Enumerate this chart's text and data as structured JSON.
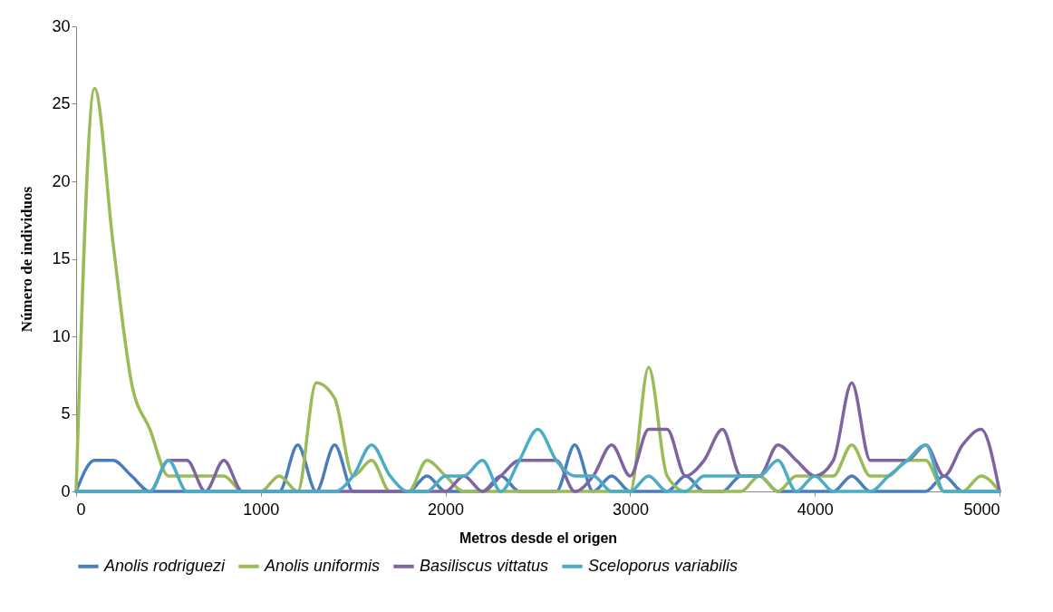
{
  "chart_data": {
    "type": "line",
    "xlabel": "Metros desde el origen",
    "ylabel": "Número de individuos",
    "x": [
      0,
      100,
      200,
      300,
      400,
      500,
      600,
      700,
      800,
      900,
      1000,
      1100,
      1200,
      1300,
      1400,
      1500,
      1600,
      1700,
      1800,
      1900,
      2000,
      2100,
      2200,
      2300,
      2400,
      2500,
      2600,
      2700,
      2800,
      2900,
      3000,
      3100,
      3200,
      3300,
      3400,
      3500,
      3600,
      3700,
      3800,
      3900,
      4000,
      4100,
      4200,
      4300,
      4400,
      4500,
      4600,
      4700,
      4800,
      4900,
      5000
    ],
    "series": [
      {
        "name": "Anolis rodriguezi",
        "color": "#4a7ebb",
        "values": [
          0,
          2,
          2,
          1,
          0,
          0,
          0,
          0,
          0,
          0,
          0,
          0,
          3,
          0,
          3,
          0,
          0,
          0,
          0,
          1,
          0,
          0,
          0,
          1,
          0,
          0,
          0,
          3,
          0,
          1,
          0,
          0,
          0,
          1,
          0,
          0,
          1,
          1,
          0,
          0,
          0,
          0,
          1,
          0,
          0,
          0,
          0,
          1,
          0,
          0,
          0
        ]
      },
      {
        "name": "Anolis uniformis",
        "color": "#9bbb59",
        "values": [
          0,
          26,
          16,
          7,
          4,
          1,
          1,
          1,
          1,
          0,
          0,
          1,
          0,
          7,
          6,
          1,
          2,
          0,
          0,
          2,
          1,
          0,
          0,
          0,
          0,
          0,
          0,
          0,
          0,
          0,
          0,
          8,
          1,
          0,
          0,
          0,
          0,
          1,
          0,
          1,
          1,
          1,
          3,
          1,
          1,
          2,
          2,
          0,
          0,
          1,
          0
        ]
      },
      {
        "name": "Basiliscus vittatus",
        "color": "#8064a2",
        "values": [
          0,
          0,
          0,
          0,
          0,
          2,
          2,
          0,
          2,
          0,
          0,
          0,
          0,
          0,
          0,
          0,
          0,
          0,
          0,
          0,
          0,
          1,
          0,
          1,
          2,
          2,
          2,
          0,
          1,
          3,
          1,
          4,
          4,
          1,
          2,
          4,
          1,
          1,
          3,
          2,
          1,
          2,
          7,
          2,
          2,
          2,
          3,
          1,
          3,
          4,
          0
        ]
      },
      {
        "name": "Sceloporus variabilis",
        "color": "#4bacc6",
        "values": [
          0,
          0,
          0,
          0,
          0,
          2,
          0,
          0,
          0,
          0,
          0,
          0,
          0,
          0,
          0,
          1,
          3,
          1,
          0,
          0,
          1,
          1,
          2,
          0,
          2,
          4,
          2,
          1,
          1,
          0,
          0,
          1,
          0,
          0,
          1,
          1,
          1,
          1,
          2,
          0,
          1,
          0,
          0,
          0,
          1,
          2,
          3,
          0,
          0,
          0,
          0
        ]
      }
    ],
    "xlim": [
      0,
      5000
    ],
    "xticks": [
      0,
      1000,
      2000,
      3000,
      4000,
      5000
    ],
    "ylim": [
      0,
      30
    ],
    "yticks": [
      0,
      5,
      10,
      15,
      20,
      25,
      30
    ],
    "grid": false,
    "legend": "bottom"
  }
}
